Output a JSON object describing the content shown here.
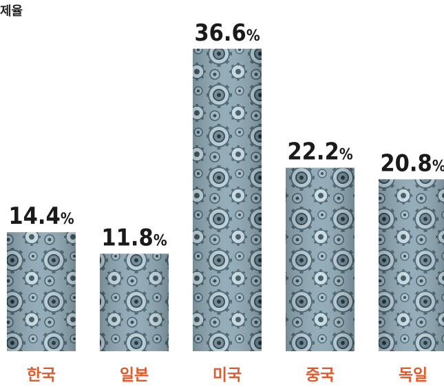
{
  "chart_data": {
    "type": "bar",
    "title": "제율",
    "categories": [
      "한국",
      "일본",
      "미국",
      "중국",
      "독일"
    ],
    "values": [
      14.4,
      11.8,
      36.6,
      22.2,
      20.8
    ],
    "value_labels": [
      "14.4%",
      "11.8%",
      "36.6%",
      "22.2%",
      "20.8%"
    ],
    "unit": "%",
    "ylim": [
      0,
      40
    ],
    "grid": false,
    "legend": "none"
  },
  "colors": {
    "category_label": "#e05a2b",
    "value_label": "#1a1a1a",
    "bar_base": "#8fa9b6",
    "bar_dark": "#3e5966",
    "bar_light": "#c9dbe3"
  }
}
